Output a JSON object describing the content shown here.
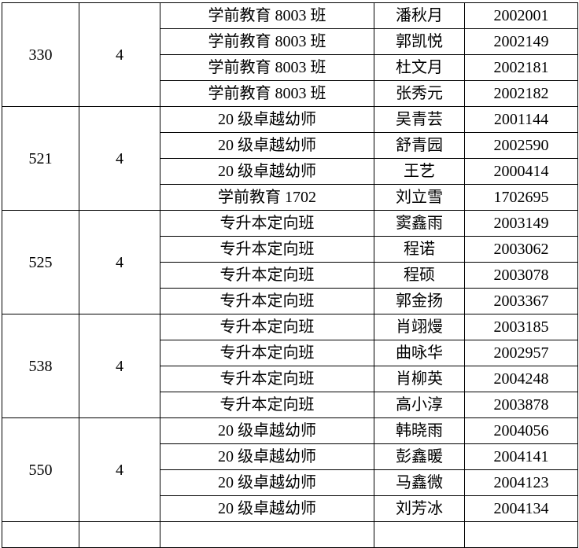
{
  "groups": [
    {
      "room": "330",
      "count": "4",
      "rows": [
        {
          "class": "学前教育 8003 班",
          "name": "潘秋月",
          "id": "2002001"
        },
        {
          "class": "学前教育 8003 班",
          "name": "郭凯悦",
          "id": "2002149"
        },
        {
          "class": "学前教育 8003 班",
          "name": "杜文月",
          "id": "2002181"
        },
        {
          "class": "学前教育 8003 班",
          "name": "张秀元",
          "id": "2002182"
        }
      ]
    },
    {
      "room": "521",
      "count": "4",
      "rows": [
        {
          "class": "20 级卓越幼师",
          "name": "吴青芸",
          "id": "2001144"
        },
        {
          "class": "20 级卓越幼师",
          "name": "舒青园",
          "id": "2002590"
        },
        {
          "class": "20 级卓越幼师",
          "name": "王艺",
          "id": "2000414"
        },
        {
          "class": "学前教育 1702",
          "name": "刘立雪",
          "id": "1702695"
        }
      ]
    },
    {
      "room": "525",
      "count": "4",
      "rows": [
        {
          "class": "专升本定向班",
          "name": "窦鑫雨",
          "id": "2003149"
        },
        {
          "class": "专升本定向班",
          "name": "程诺",
          "id": "2003062"
        },
        {
          "class": "专升本定向班",
          "name": "程硕",
          "id": "2003078"
        },
        {
          "class": "专升本定向班",
          "name": "郭金扬",
          "id": "2003367"
        }
      ]
    },
    {
      "room": "538",
      "count": "4",
      "rows": [
        {
          "class": "专升本定向班",
          "name": "肖翊熳",
          "id": "2003185"
        },
        {
          "class": "专升本定向班",
          "name": "曲咏华",
          "id": "2002957"
        },
        {
          "class": "专升本定向班",
          "name": "肖柳英",
          "id": "2004248"
        },
        {
          "class": "专升本定向班",
          "name": "高小淳",
          "id": "2003878"
        }
      ]
    },
    {
      "room": "550",
      "count": "4",
      "rows": [
        {
          "class": "20 级卓越幼师",
          "name": "韩晓雨",
          "id": "2004056"
        },
        {
          "class": "20 级卓越幼师",
          "name": "彭鑫暖",
          "id": "2004141"
        },
        {
          "class": "20 级卓越幼师",
          "name": "马鑫微",
          "id": "2004123"
        },
        {
          "class": "20 级卓越幼师",
          "name": "刘芳冰",
          "id": "2004134"
        }
      ]
    }
  ]
}
